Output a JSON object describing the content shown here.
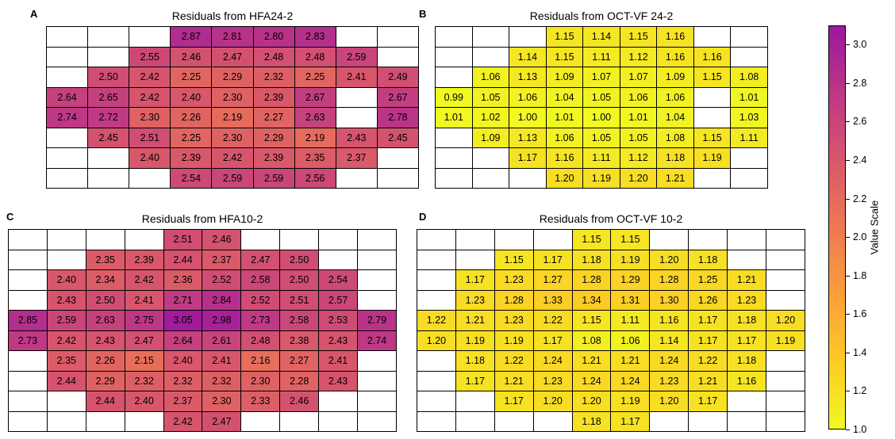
{
  "colorbar": {
    "label": "Value Scale",
    "min": 1.0,
    "max": 3.1,
    "ticks": [
      "1.0",
      "1.2",
      "1.4",
      "1.6",
      "1.8",
      "2.0",
      "2.2",
      "2.4",
      "2.6",
      "2.8",
      "3.0"
    ],
    "colors": [
      "#f0f921",
      "#fdca26",
      "#fb9f3a",
      "#ed7953",
      "#d8576b",
      "#bd3786",
      "#9c179e"
    ]
  },
  "chart_data": [
    {
      "type": "heatmap",
      "letter": "A",
      "title": "Residuals from HFA24-2",
      "cols": 9,
      "rows": [
        [
          "",
          "",
          "",
          "2.87",
          "2.81",
          "2.80",
          "2.83",
          "",
          ""
        ],
        [
          "",
          "",
          "2.55",
          "2.46",
          "2.47",
          "2.48",
          "2.48",
          "2.59",
          ""
        ],
        [
          "",
          "2.50",
          "2.42",
          "2.25",
          "2.29",
          "2.32",
          "2.25",
          "2.41",
          "2.49"
        ],
        [
          "2.64",
          "2.65",
          "2.42",
          "2.40",
          "2.30",
          "2.39",
          "2.67",
          "",
          "2.67"
        ],
        [
          "2.74",
          "2.72",
          "2.30",
          "2.26",
          "2.19",
          "2.27",
          "2.63",
          "",
          "2.78"
        ],
        [
          "",
          "2.45",
          "2.51",
          "2.25",
          "2.30",
          "2.29",
          "2.19",
          "2.43",
          "2.45"
        ],
        [
          "",
          "",
          "2.40",
          "2.39",
          "2.42",
          "2.39",
          "2.35",
          "2.37",
          ""
        ],
        [
          "",
          "",
          "",
          "2.54",
          "2.59",
          "2.59",
          "2.56",
          "",
          ""
        ]
      ]
    },
    {
      "type": "heatmap",
      "letter": "B",
      "title": "Residuals from OCT-VF 24-2",
      "cols": 9,
      "rows": [
        [
          "",
          "",
          "",
          "1.15",
          "1.14",
          "1.15",
          "1.16",
          "",
          ""
        ],
        [
          "",
          "",
          "1.14",
          "1.15",
          "1.11",
          "1.12",
          "1.16",
          "1.16",
          ""
        ],
        [
          "",
          "1.06",
          "1.13",
          "1.09",
          "1.07",
          "1.07",
          "1.09",
          "1.15",
          "1.08"
        ],
        [
          "0.99",
          "1.05",
          "1.06",
          "1.04",
          "1.05",
          "1.06",
          "1.06",
          "",
          "1.01"
        ],
        [
          "1.01",
          "1.02",
          "1.00",
          "1.01",
          "1.00",
          "1.01",
          "1.04",
          "",
          "1.03"
        ],
        [
          "",
          "1.09",
          "1.13",
          "1.06",
          "1.05",
          "1.05",
          "1.08",
          "1.15",
          "1.11"
        ],
        [
          "",
          "",
          "1.17",
          "1.16",
          "1.11",
          "1.12",
          "1.18",
          "1.19",
          ""
        ],
        [
          "",
          "",
          "",
          "1.20",
          "1.19",
          "1.20",
          "1.21",
          "",
          ""
        ]
      ]
    },
    {
      "type": "heatmap",
      "letter": "C",
      "title": "Residuals from HFA10-2",
      "cols": 10,
      "rows": [
        [
          "",
          "",
          "",
          "",
          "2.51",
          "2.46",
          "",
          "",
          "",
          ""
        ],
        [
          "",
          "",
          "2.35",
          "2.39",
          "2.44",
          "2.37",
          "2.47",
          "2.50",
          "",
          ""
        ],
        [
          "",
          "2.40",
          "2.34",
          "2.42",
          "2.36",
          "2.52",
          "2.58",
          "2.50",
          "2.54",
          ""
        ],
        [
          "",
          "2.43",
          "2.50",
          "2.41",
          "2.71",
          "2.84",
          "2.52",
          "2.51",
          "2.57",
          ""
        ],
        [
          "2.85",
          "2.59",
          "2.63",
          "2.75",
          "3.05",
          "2.98",
          "2.73",
          "2.58",
          "2.53",
          "2.79"
        ],
        [
          "2.73",
          "2.42",
          "2.43",
          "2.47",
          "2.64",
          "2.61",
          "2.48",
          "2.38",
          "2.43",
          "2.74"
        ],
        [
          "",
          "2.35",
          "2.26",
          "2.15",
          "2.40",
          "2.41",
          "2.16",
          "2.27",
          "2.41",
          ""
        ],
        [
          "",
          "2.44",
          "2.29",
          "2.32",
          "2.32",
          "2.32",
          "2.30",
          "2.28",
          "2.43",
          ""
        ],
        [
          "",
          "",
          "2.44",
          "2.40",
          "2.37",
          "2.30",
          "2.33",
          "2.46",
          "",
          ""
        ],
        [
          "",
          "",
          "",
          "",
          "2.42",
          "2.47",
          "",
          "",
          "",
          ""
        ]
      ]
    },
    {
      "type": "heatmap",
      "letter": "D",
      "title": "Residuals from OCT-VF 10-2",
      "cols": 10,
      "rows": [
        [
          "",
          "",
          "",
          "",
          "1.15",
          "1.15",
          "",
          "",
          "",
          ""
        ],
        [
          "",
          "",
          "1.15",
          "1.17",
          "1.18",
          "1.19",
          "1.20",
          "1.18",
          "",
          ""
        ],
        [
          "",
          "1.17",
          "1.23",
          "1.27",
          "1.28",
          "1.29",
          "1.28",
          "1.25",
          "1.21",
          ""
        ],
        [
          "",
          "1.23",
          "1.28",
          "1.33",
          "1.34",
          "1.31",
          "1.30",
          "1.26",
          "1.23",
          ""
        ],
        [
          "1.22",
          "1.21",
          "1.23",
          "1.22",
          "1.15",
          "1.11",
          "1.16",
          "1.17",
          "1.18",
          "1.20"
        ],
        [
          "1.20",
          "1.19",
          "1.19",
          "1.17",
          "1.08",
          "1.06",
          "1.14",
          "1.17",
          "1.17",
          "1.19"
        ],
        [
          "",
          "1.18",
          "1.22",
          "1.24",
          "1.21",
          "1.21",
          "1.24",
          "1.22",
          "1.18",
          ""
        ],
        [
          "",
          "1.17",
          "1.21",
          "1.23",
          "1.24",
          "1.24",
          "1.23",
          "1.21",
          "1.16",
          ""
        ],
        [
          "",
          "",
          "1.17",
          "1.20",
          "1.20",
          "1.19",
          "1.20",
          "1.17",
          "",
          ""
        ],
        [
          "",
          "",
          "",
          "",
          "1.18",
          "1.17",
          "",
          "",
          "",
          ""
        ]
      ]
    }
  ]
}
